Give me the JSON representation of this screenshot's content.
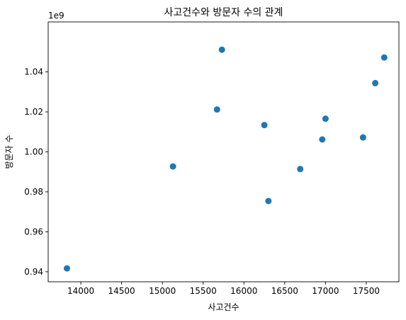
{
  "chart_data": {
    "type": "scatter",
    "title": "사고건수와 방문자 수의 관계",
    "xlabel": "사고건수",
    "ylabel": "방문자 수",
    "y_offset_label": "1e9",
    "xlim": [
      13600,
      17900
    ],
    "ylim": [
      0.935,
      1.065
    ],
    "x_ticks": [
      14000,
      14500,
      15000,
      15500,
      16000,
      16500,
      17000,
      17500
    ],
    "x_tick_labels": [
      "14000",
      "14500",
      "15000",
      "15500",
      "16000",
      "16500",
      "17000",
      "17500"
    ],
    "y_ticks": [
      0.94,
      0.96,
      0.98,
      1.0,
      1.02,
      1.04
    ],
    "y_tick_labels": [
      "0.94",
      "0.96",
      "0.98",
      "1.00",
      "1.02",
      "1.04"
    ],
    "grid": false,
    "marker_color": "#1f77b4",
    "points": [
      {
        "x": 13830,
        "y": 0.9417
      },
      {
        "x": 15130,
        "y": 0.9927
      },
      {
        "x": 15670,
        "y": 1.0212
      },
      {
        "x": 15730,
        "y": 1.0511
      },
      {
        "x": 16250,
        "y": 1.0134
      },
      {
        "x": 16300,
        "y": 0.9754
      },
      {
        "x": 16690,
        "y": 0.9914
      },
      {
        "x": 16960,
        "y": 1.0062
      },
      {
        "x": 17000,
        "y": 1.0166
      },
      {
        "x": 17460,
        "y": 1.0072
      },
      {
        "x": 17610,
        "y": 1.0344
      },
      {
        "x": 17720,
        "y": 1.0472
      }
    ]
  }
}
